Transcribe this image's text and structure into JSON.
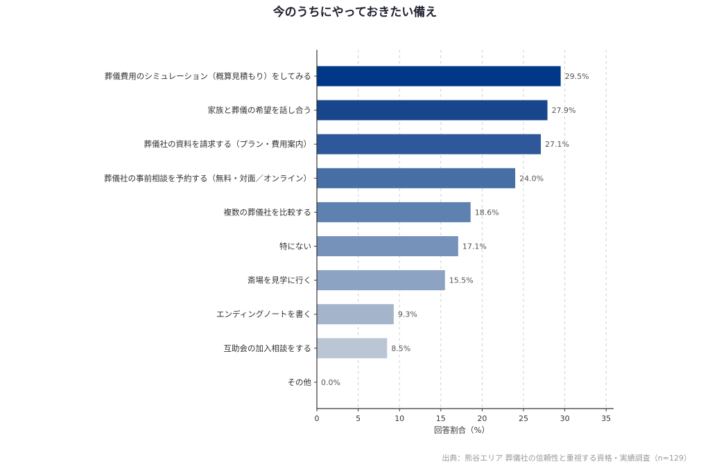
{
  "chart_data": {
    "type": "bar",
    "orientation": "horizontal",
    "title": "今のうちにやっておきたい備え",
    "xlabel": "回答割合（%）",
    "ylabel": "",
    "xlim": [
      0,
      36
    ],
    "xticks": [
      0,
      5,
      10,
      15,
      20,
      25,
      30,
      35
    ],
    "grid": "vertical dashed",
    "categories": [
      "葬儀費用のシミュレーション（概算見積もり）をしてみる",
      "家族と葬儀の希望を話し合う",
      "葬儀社の資料を請求する（プラン・費用案内）",
      "葬儀社の事前相談を予約する（無料・対面／オンライン）",
      "複数の葬儀社を比較する",
      "特にない",
      "斎場を見学に行く",
      "エンディングノートを書く",
      "互助会の加入相談をする",
      "その他"
    ],
    "values": [
      29.5,
      27.9,
      27.1,
      24.0,
      18.6,
      17.1,
      15.5,
      9.3,
      8.5,
      0.0
    ],
    "value_labels": [
      "29.5%",
      "27.9%",
      "27.1%",
      "24.0%",
      "18.6%",
      "17.1%",
      "15.5%",
      "9.3%",
      "8.5%",
      "0.0%"
    ],
    "colors": [
      "#003887",
      "#17468c",
      "#2e5899",
      "#466fa6",
      "#5f81b0",
      "#7692ba",
      "#8ca3c3",
      "#a4b4ca",
      "#bbc6d4",
      "#c8cfd9"
    ],
    "source": "出典：熊谷エリア 葬儀社の信頼性と重視する資格・実績調査（n=129）"
  }
}
